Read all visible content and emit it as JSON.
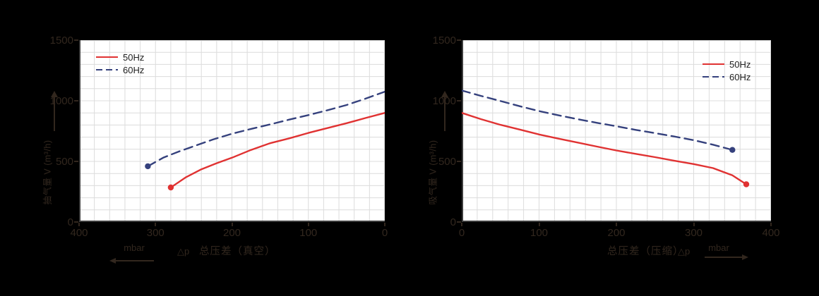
{
  "page": {
    "background": "#000000",
    "label_ink": "#32271e"
  },
  "colors": {
    "series_50hz": "#e03232",
    "series_60hz": "#35417d",
    "grid": "#dcdcdc",
    "plot_background": "#ffffff",
    "spine": "#3d3d3d",
    "legend_text": "#222222"
  },
  "chart_data": [
    {
      "id": "vacuum-performance",
      "type": "line",
      "title": "",
      "ylabel": "抽气量 V (m³/h)",
      "x_axis": {
        "dp": "△p",
        "title": "总压差（真空）",
        "unit": "mbar",
        "arrow_direction": "left"
      },
      "xlim": [
        400,
        0
      ],
      "ylim": [
        0,
        1500
      ],
      "x_ticks": [
        400,
        300,
        200,
        100,
        0
      ],
      "y_ticks": [
        1500,
        1000,
        500,
        0
      ],
      "grid": {
        "on": true,
        "x_step": 20,
        "y_step": 100
      },
      "legend_position": "top-left",
      "series": [
        {
          "name": "50Hz",
          "style": "solid",
          "color": "#e03232",
          "dot_at": "first",
          "points": [
            [
              280,
              285
            ],
            [
              260,
              370
            ],
            [
              240,
              435
            ],
            [
              220,
              485
            ],
            [
              200,
              530
            ],
            [
              175,
              595
            ],
            [
              150,
              650
            ],
            [
              125,
              690
            ],
            [
              100,
              735
            ],
            [
              75,
              775
            ],
            [
              50,
              815
            ],
            [
              25,
              858
            ],
            [
              0,
              900
            ]
          ]
        },
        {
          "name": "60Hz",
          "style": "dashed",
          "color": "#35417d",
          "dot_at": "first",
          "points": [
            [
              310,
              460
            ],
            [
              290,
              530
            ],
            [
              270,
              580
            ],
            [
              250,
              625
            ],
            [
              225,
              680
            ],
            [
              200,
              728
            ],
            [
              175,
              768
            ],
            [
              150,
              805
            ],
            [
              125,
              845
            ],
            [
              100,
              882
            ],
            [
              75,
              922
            ],
            [
              50,
              965
            ],
            [
              25,
              1018
            ],
            [
              0,
              1075
            ]
          ]
        }
      ]
    },
    {
      "id": "compression-performance",
      "type": "line",
      "title": "",
      "ylabel": "吸气量 V (m³/h)",
      "x_axis": {
        "dp": "△p",
        "title": "总压差（压缩）",
        "unit": "mbar",
        "arrow_direction": "right"
      },
      "xlim": [
        0,
        400
      ],
      "ylim": [
        0,
        1500
      ],
      "x_ticks": [
        0,
        100,
        200,
        300,
        400
      ],
      "y_ticks": [
        1500,
        1000,
        500,
        0
      ],
      "grid": {
        "on": true,
        "x_step": 20,
        "y_step": 100
      },
      "legend_position": "top-right",
      "series": [
        {
          "name": "50Hz",
          "style": "solid",
          "color": "#e03232",
          "dot_at": "last",
          "points": [
            [
              0,
              900
            ],
            [
              25,
              848
            ],
            [
              50,
              802
            ],
            [
              75,
              763
            ],
            [
              100,
              722
            ],
            [
              125,
              688
            ],
            [
              150,
              655
            ],
            [
              175,
              622
            ],
            [
              200,
              590
            ],
            [
              225,
              562
            ],
            [
              250,
              535
            ],
            [
              275,
              505
            ],
            [
              300,
              478
            ],
            [
              325,
              445
            ],
            [
              350,
              385
            ],
            [
              368,
              311
            ]
          ]
        },
        {
          "name": "60Hz",
          "style": "dashed",
          "color": "#35417d",
          "dot_at": "last",
          "points": [
            [
              0,
              1085
            ],
            [
              25,
              1040
            ],
            [
              50,
              998
            ],
            [
              75,
              955
            ],
            [
              100,
              915
            ],
            [
              125,
              880
            ],
            [
              150,
              848
            ],
            [
              175,
              818
            ],
            [
              200,
              790
            ],
            [
              225,
              760
            ],
            [
              250,
              733
            ],
            [
              275,
              705
            ],
            [
              300,
              675
            ],
            [
              325,
              638
            ],
            [
              350,
              595
            ]
          ]
        }
      ]
    }
  ]
}
